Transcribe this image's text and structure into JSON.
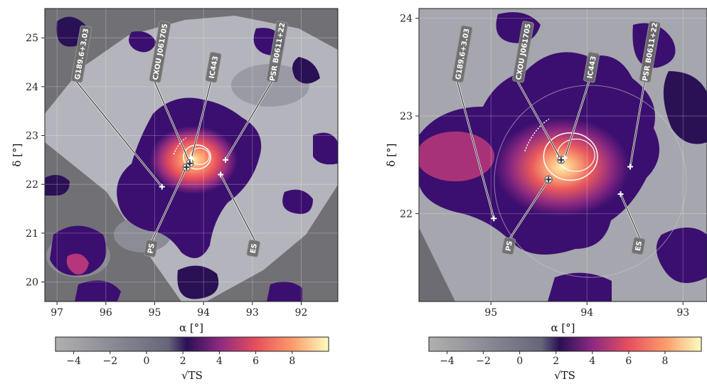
{
  "chart_data": [
    {
      "type": "heatmap",
      "panel": "left",
      "xlabel": "α [°]",
      "ylabel": "δ [°]",
      "xlim": [
        97.25,
        91.25
      ],
      "ylim": [
        19.6,
        25.6
      ],
      "xticks": [
        97,
        96,
        95,
        94,
        93,
        92
      ],
      "yticks": [
        20,
        21,
        22,
        23,
        24,
        25
      ],
      "grid": true,
      "sources": [
        {
          "name": "G189.6+3.03",
          "ra": 94.85,
          "dec": 21.95,
          "label_ra": 96.6,
          "label_dec": 24.1,
          "label_position": "top"
        },
        {
          "name": "CXOU J061705",
          "ra": 94.28,
          "dec": 22.43,
          "label_ra": 95.0,
          "label_dec": 24.1,
          "label_position": "top"
        },
        {
          "name": "IC443",
          "ra": 94.25,
          "dec": 22.53,
          "label_ra": 93.85,
          "label_dec": 24.1,
          "label_position": "top"
        },
        {
          "name": "PSR B0611+22",
          "ra": 93.55,
          "dec": 22.5,
          "label_ra": 92.6,
          "label_dec": 24.1,
          "label_position": "top"
        },
        {
          "name": "PS",
          "ra": 94.35,
          "dec": 22.35,
          "label_ra": 95.05,
          "label_dec": 20.85,
          "label_position": "bottom"
        },
        {
          "name": "ES",
          "ra": 93.65,
          "dec": 22.2,
          "label_ra": 92.95,
          "label_dec": 20.85,
          "label_position": "bottom"
        }
      ]
    },
    {
      "type": "heatmap",
      "panel": "right",
      "xlabel": "α [°]",
      "ylabel": "δ [°]",
      "xlim": [
        95.75,
        92.75
      ],
      "ylim": [
        21.1,
        24.1
      ],
      "xticks": [
        95,
        94,
        93
      ],
      "yticks": [
        22,
        23,
        24
      ],
      "grid": true,
      "sources": [
        {
          "name": "G189.6+3.03",
          "ra": 94.97,
          "dec": 21.95,
          "label_ra": 95.35,
          "label_dec": 23.35,
          "label_position": "top"
        },
        {
          "name": "CXOU J061705",
          "ra": 94.27,
          "dec": 22.55,
          "label_ra": 94.72,
          "label_dec": 23.35,
          "label_position": "top"
        },
        {
          "name": "IC443",
          "ra": 94.23,
          "dec": 22.57,
          "label_ra": 93.98,
          "label_dec": 23.35,
          "label_position": "top"
        },
        {
          "name": "PSR B0611+22",
          "ra": 93.55,
          "dec": 22.48,
          "label_ra": 93.4,
          "label_dec": 23.35,
          "label_position": "top"
        },
        {
          "name": "PS",
          "ra": 94.4,
          "dec": 22.35,
          "label_ra": 94.8,
          "label_dec": 21.75,
          "label_position": "bottom"
        },
        {
          "name": "ES",
          "ra": 93.65,
          "dec": 22.2,
          "label_ra": 93.45,
          "label_dec": 21.75,
          "label_position": "bottom"
        }
      ]
    }
  ],
  "colorbar": {
    "label": "√TS",
    "range": [
      -5,
      10
    ],
    "ticks": [
      -4,
      -2,
      0,
      2,
      4,
      6,
      8
    ],
    "stops": [
      {
        "value": -5,
        "color": "#b0b0b0"
      },
      {
        "value": 1.2,
        "color": "#66667a"
      },
      {
        "value": 2.2,
        "color": "#2a1055"
      },
      {
        "value": 4,
        "color": "#8c2981"
      },
      {
        "value": 6,
        "color": "#e54f5e"
      },
      {
        "value": 8,
        "color": "#fd9a6a"
      },
      {
        "value": 10,
        "color": "#fcfdbf"
      }
    ]
  }
}
